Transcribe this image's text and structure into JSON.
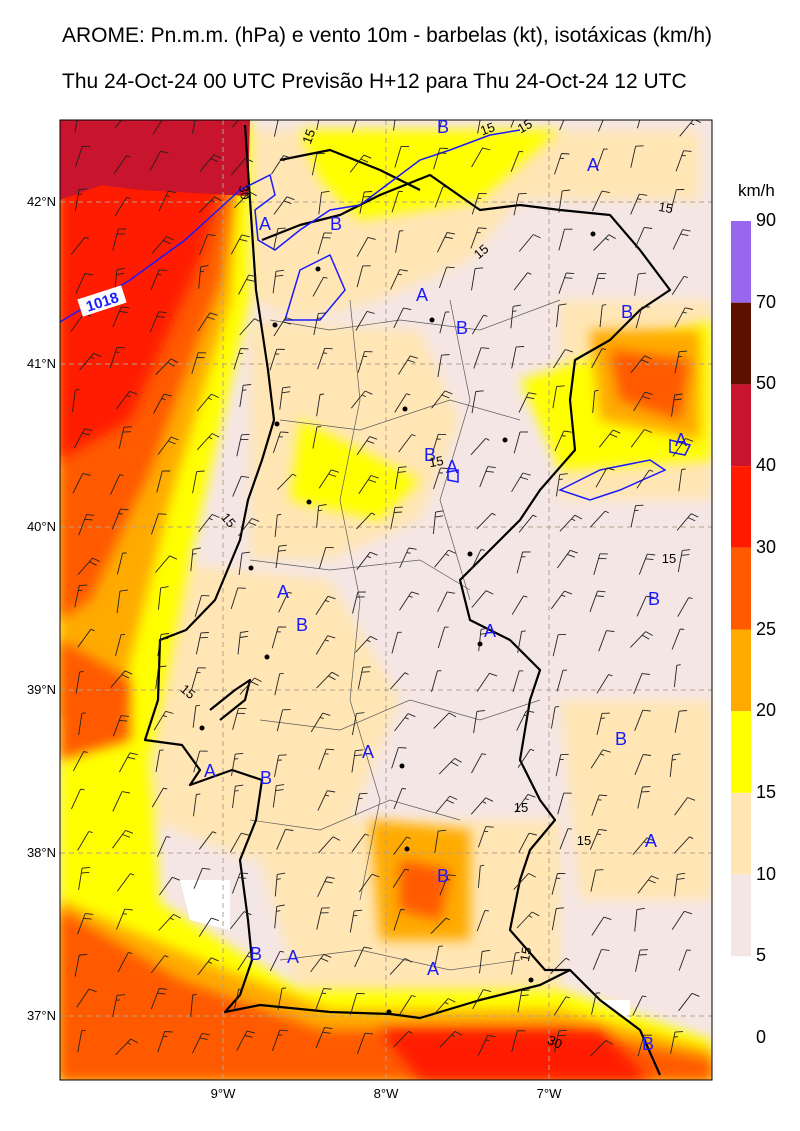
{
  "title_line1": "AROME: Pn.m.m. (hPa) e vento 10m - barbelas (kt), isotáxicas (km/h)",
  "title_line2": "Thu 24-Oct-24 00 UTC Previsão H+12 para Thu 24-Oct-24 12 UTC",
  "colorbar": {
    "unit": "km/h",
    "labels": [
      "90",
      "70",
      "50",
      "40",
      "30",
      "25",
      "20",
      "15",
      "10",
      "5",
      "0"
    ],
    "colors": [
      "#9966ee",
      "#5c1000",
      "#c8142c",
      "#ff1a00",
      "#ff5a00",
      "#ffaa00",
      "#ffff00",
      "#ffe6b4",
      "#f5e6e6"
    ]
  },
  "axes": {
    "lat_labels": [
      "42°N",
      "41°N",
      "40°N",
      "39°N",
      "38°N",
      "37°N"
    ],
    "lon_labels": [
      "9°W",
      "8°W",
      "7°W"
    ]
  },
  "pressure": {
    "isobar_label": "1018",
    "high_label": "A",
    "low_label": "B"
  },
  "isotach_labels": {
    "v15": "15",
    "v30": "30"
  },
  "colors": {
    "isobar": "#1a1aff",
    "coast": "#000000",
    "grid": "#b4a08c"
  }
}
